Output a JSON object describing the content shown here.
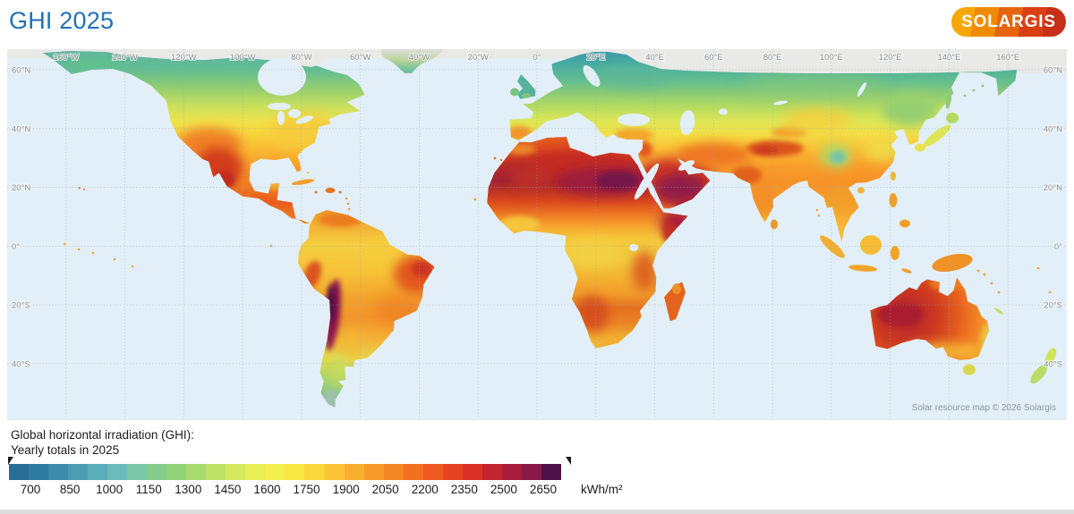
{
  "header": {
    "title": "GHI 2025",
    "logo_text": "SOLARGIS"
  },
  "map": {
    "attribution": "Solar resource map © 2026 Solargis",
    "lon_gridlines_deg": [
      -160,
      -140,
      -120,
      -100,
      -80,
      -60,
      -40,
      -20,
      0,
      20,
      40,
      60,
      80,
      100,
      120,
      140,
      160
    ],
    "lon_labels": [
      "160°W",
      "140°W",
      "120°W",
      "100°W",
      "80°W",
      "60°W",
      "40°W",
      "20°W",
      "0°",
      "20°E",
      "40°E",
      "60°E",
      "80°E",
      "100°E",
      "120°E",
      "140°E",
      "160°E"
    ],
    "lat_gridlines_deg": [
      60,
      40,
      20,
      0,
      -20,
      -40
    ],
    "lat_labels": [
      "60°N",
      "40°N",
      "20°N",
      "0°",
      "20°S",
      "40°S"
    ]
  },
  "legend": {
    "title_line1": "Global horizontal irradiation (GHI):",
    "title_line2": "Yearly totals in 2025",
    "unit": "kWh/m²",
    "scale_min": 625,
    "scale_max": 2725,
    "step": 75,
    "tick_values": [
      700,
      850,
      1000,
      1150,
      1300,
      1450,
      1600,
      1750,
      1900,
      2050,
      2200,
      2350,
      2500,
      2650
    ],
    "colors": [
      "#2a6d97",
      "#2f7ba0",
      "#3c8ba9",
      "#4c9cb2",
      "#5cacba",
      "#6cbaba",
      "#7cc7a8",
      "#83cc8a",
      "#92d276",
      "#a8da6e",
      "#c0e266",
      "#d5e95e",
      "#e7ee56",
      "#f4ef4e",
      "#f9e843",
      "#fbd83b",
      "#fac434",
      "#f8b02e",
      "#f69b29",
      "#f48624",
      "#f17121",
      "#ed5b1f",
      "#e64420",
      "#d93125",
      "#c2252f",
      "#a81d3d",
      "#8a1a4a",
      "#4e1147"
    ]
  },
  "colors": {
    "title_blue": "#2171b5",
    "ocean": "#e2eff8",
    "arctic_gray": "#e9e9e7",
    "label_gray": "#85898e"
  }
}
